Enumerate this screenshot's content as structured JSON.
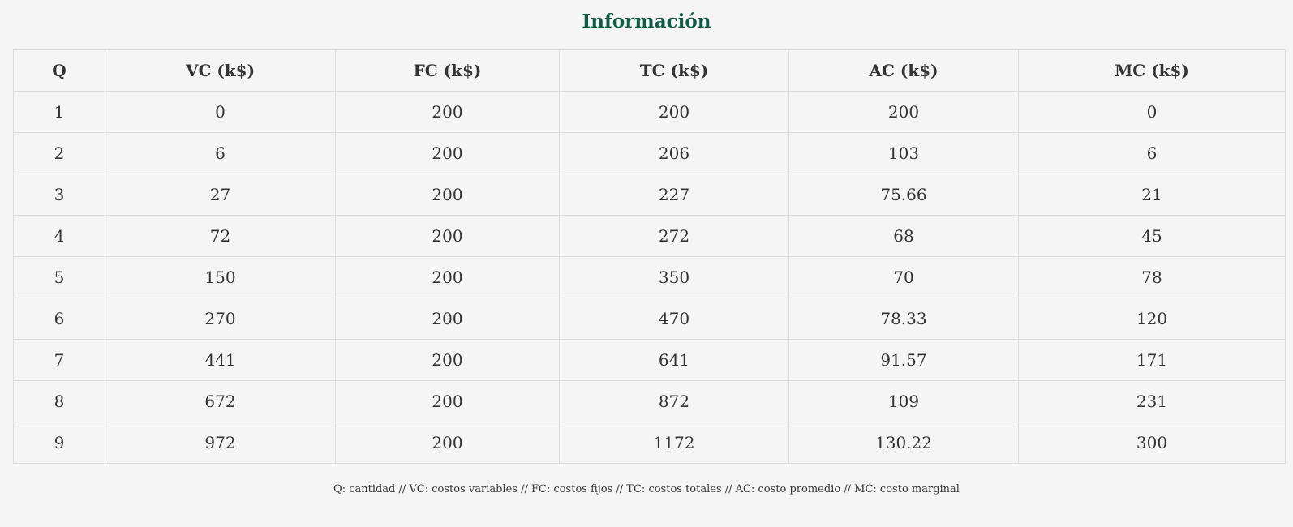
{
  "title": "Información",
  "table": {
    "headers": [
      "Q",
      "VC (k$)",
      "FC (k$)",
      "TC (k$)",
      "AC (k$)",
      "MC (k$)"
    ],
    "rows": [
      [
        "1",
        "0",
        "200",
        "200",
        "200",
        "0"
      ],
      [
        "2",
        "6",
        "200",
        "206",
        "103",
        "6"
      ],
      [
        "3",
        "27",
        "200",
        "227",
        "75.66",
        "21"
      ],
      [
        "4",
        "72",
        "200",
        "272",
        "68",
        "45"
      ],
      [
        "5",
        "150",
        "200",
        "350",
        "70",
        "78"
      ],
      [
        "6",
        "270",
        "200",
        "470",
        "78.33",
        "120"
      ],
      [
        "7",
        "441",
        "200",
        "641",
        "91.57",
        "171"
      ],
      [
        "8",
        "672",
        "200",
        "872",
        "109",
        "231"
      ],
      [
        "9",
        "972",
        "200",
        "1172",
        "130.22",
        "300"
      ]
    ]
  },
  "footnote": "Q: cantidad // VC: costos variables // FC: costos fijos // TC: costos totales // AC: costo promedio // MC: costo marginal",
  "colors": {
    "title": "#0f5c45",
    "background": "#f5f5f5",
    "border": "#dcdcdc",
    "text": "#333333"
  }
}
